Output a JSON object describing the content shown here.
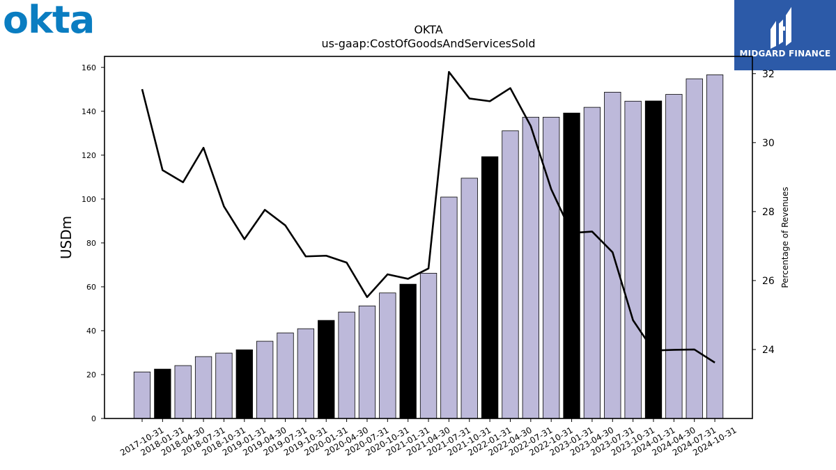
{
  "logos": {
    "left": "okta",
    "right": "MIDGARD FINANCE"
  },
  "colors": {
    "okta_blue": "#0a7dc1",
    "midgard_bg": "#2c5aa8",
    "bar_default": "#bdb9da",
    "bar_highlight": "#000000",
    "line": "#000000"
  },
  "chart_data": {
    "type": "bar",
    "title": "OKTA",
    "subtitle": "us-gaap:CostOfGoodsAndServicesSold",
    "ylabel": "USDm",
    "y2label": "Percentage of Revenues",
    "ylim": [
      0,
      165
    ],
    "y2lim": [
      22,
      32.5
    ],
    "yticks": [
      0,
      20,
      40,
      60,
      80,
      100,
      120,
      140,
      160
    ],
    "y2ticks": [
      24,
      26,
      28,
      30,
      32
    ],
    "grid": false,
    "categories": [
      "2017-10-31",
      "2018-01-31",
      "2018-04-30",
      "2018-07-31",
      "2018-10-31",
      "2019-01-31",
      "2019-04-30",
      "2019-07-31",
      "2019-10-31",
      "2020-01-31",
      "2020-04-30",
      "2020-07-31",
      "2020-10-31",
      "2021-01-31",
      "2021-04-30",
      "2021-07-31",
      "2021-10-31",
      "2022-01-31",
      "2022-04-30",
      "2022-07-31",
      "2022-10-31",
      "2023-01-31",
      "2023-04-30",
      "2023-07-31",
      "2023-10-31",
      "2024-01-31",
      "2024-04-30",
      "2024-07-31",
      "2024-10-31"
    ],
    "series": [
      {
        "type": "bar",
        "axis": "left",
        "values": [
          21.2,
          22.5,
          24.1,
          28.2,
          29.8,
          31.3,
          35.2,
          39.0,
          40.9,
          44.7,
          48.5,
          51.3,
          57.2,
          61.2,
          66.2,
          100.9,
          109.5,
          119.3,
          131.1,
          137.3,
          137.3,
          139.2,
          141.8,
          148.7,
          144.6,
          144.7,
          147.7,
          154.8,
          156.6
        ],
        "highlight": [
          false,
          true,
          false,
          false,
          false,
          true,
          false,
          false,
          false,
          true,
          false,
          false,
          false,
          true,
          false,
          false,
          false,
          true,
          false,
          false,
          false,
          true,
          false,
          false,
          false,
          true,
          false,
          false,
          false
        ]
      },
      {
        "type": "line",
        "axis": "right",
        "values": [
          31.55,
          29.2,
          28.85,
          29.85,
          28.15,
          27.2,
          28.05,
          27.6,
          26.7,
          26.72,
          26.52,
          25.52,
          26.18,
          26.05,
          26.35,
          32.05,
          31.28,
          31.2,
          31.58,
          30.48,
          28.65,
          27.38,
          27.42,
          26.82,
          24.85,
          23.97,
          23.99,
          24.0,
          23.62
        ]
      }
    ]
  }
}
